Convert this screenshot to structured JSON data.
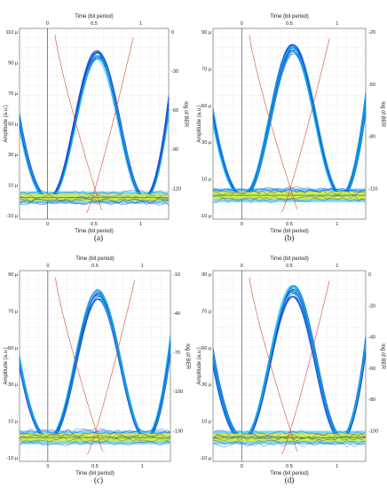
{
  "figure": {
    "captions": [
      "(a)",
      "(b)",
      "(c)",
      "(d)"
    ]
  },
  "chart_data": [
    {
      "type": "line",
      "panel": "(a)",
      "xlabel_top": "Time (bit period)",
      "xlabel_bottom": "Time (bit period)",
      "ylabel_left": "Amplitude (a.u.)",
      "ylabel_right": "log of BER",
      "x_ticks": [
        "0",
        "0.5",
        "1"
      ],
      "y_ticks": [
        "110 µ",
        "90 µ",
        "70 µ",
        "50 µ",
        "30 µ",
        "10 µ",
        "-10 µ"
      ],
      "y_ticks_right": [
        "0",
        "-30",
        "-60",
        "-90",
        "-120"
      ],
      "xlim": [
        -0.3,
        1.3
      ],
      "ylim": [
        -12,
        112
      ],
      "eye_peak": 95,
      "eye_floor": 2,
      "eye_band": 6,
      "threshold": 2,
      "colors": {
        "trace": "#1a3fd6",
        "halo": "#12b8e8",
        "noise": "#d8ee38",
        "ber": "#d94a3a",
        "threshold": "#3b8a2e"
      }
    },
    {
      "type": "line",
      "panel": "(b)",
      "xlabel_top": "Time (bit period)",
      "xlabel_bottom": "Time (bit period)",
      "ylabel_left": "Amplitude (a.u.)",
      "ylabel_right": "log of BER",
      "x_ticks": [
        "0",
        "0.5",
        "1"
      ],
      "y_ticks": [
        "90 µ",
        "70 µ",
        "50 µ",
        "30 µ",
        "10 µ",
        "-10 µ"
      ],
      "y_ticks_right": [
        "-20",
        "-50",
        "-80",
        "-110"
      ],
      "xlim": [
        -0.3,
        1.3
      ],
      "ylim": [
        -12,
        100
      ],
      "eye_peak": 88,
      "eye_floor": 2,
      "eye_band": 6,
      "threshold": 2,
      "colors": {
        "trace": "#1a3fd6",
        "halo": "#12b8e8",
        "noise": "#d8ee38",
        "ber": "#d94a3a",
        "threshold": "#3b8a2e"
      }
    },
    {
      "type": "line",
      "panel": "(c)",
      "xlabel_top": "Time (bit period)",
      "xlabel_bottom": "Time (bit period)",
      "ylabel_left": "Amplitude (a.u.)",
      "ylabel_right": "log of BER",
      "x_ticks": [
        "0",
        "0.5",
        "1"
      ],
      "y_ticks": [
        "90 µ",
        "70 µ",
        "50 µ",
        "30 µ",
        "10 µ",
        "-10 µ"
      ],
      "y_ticks_right": [
        "-10",
        "-40",
        "-70",
        "-100",
        "-130"
      ],
      "xlim": [
        -0.3,
        1.3
      ],
      "ylim": [
        -12,
        100
      ],
      "eye_peak": 86,
      "eye_floor": 2,
      "eye_band": 6,
      "threshold": 2,
      "colors": {
        "trace": "#1a3fd6",
        "halo": "#12b8e8",
        "noise": "#d8ee38",
        "ber": "#d94a3a",
        "threshold": "#3b8a2e"
      }
    },
    {
      "type": "line",
      "panel": "(d)",
      "xlabel_top": "Time (bit period)",
      "xlabel_bottom": "Time (bit period)",
      "ylabel_left": "Amplitude (a.u.)",
      "ylabel_right": "log of BER",
      "x_ticks": [
        "0",
        "0.5",
        "1"
      ],
      "y_ticks": [
        "90 µ",
        "70 µ",
        "50 µ",
        "30 µ",
        "10 µ",
        "-10 µ"
      ],
      "y_ticks_right": [
        "0",
        "-20",
        "-40",
        "-60",
        "-80",
        "-100"
      ],
      "xlim": [
        -0.3,
        1.3
      ],
      "ylim": [
        -12,
        100
      ],
      "eye_peak": 88,
      "eye_floor": 2,
      "eye_band": 7,
      "threshold": 2,
      "colors": {
        "trace": "#1a3fd6",
        "halo": "#12b8e8",
        "noise": "#d8ee38",
        "ber": "#d94a3a",
        "threshold": "#3b8a2e"
      }
    }
  ]
}
